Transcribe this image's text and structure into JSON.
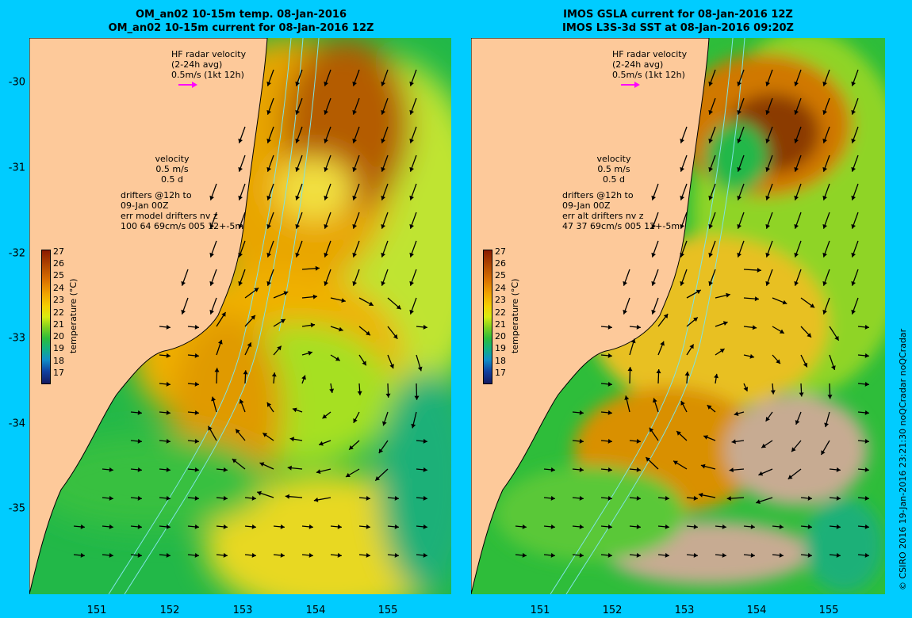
{
  "left_panel": {
    "title_line1": "OM_an02 10-15m temp. 08-Jan-2016",
    "title_line2": "OM_an02 10-15m current for 08-Jan-2016 12Z",
    "hf_radar": [
      "HF radar velocity",
      "(2-24h avg)",
      "0.5m/s (1kt 12h)"
    ],
    "velocity": [
      "velocity",
      "0.5 m/s",
      "0.5 d"
    ],
    "drifters": [
      "drifters @12h to",
      "09-Jan 00Z",
      "err model drifters nv z",
      "100 64 69cm/s 005 12+-5m"
    ]
  },
  "right_panel": {
    "title_line1": "IMOS GSLA current for 08-Jan-2016 12Z",
    "title_line2": "IMOS L3S-3d SST at 08-Jan-2016 09:20Z",
    "hf_radar": [
      "HF radar velocity",
      "(2-24h avg)",
      "0.5m/s (1kt 12h)"
    ],
    "velocity": [
      "velocity",
      "0.5 m/s",
      "0.5 d"
    ],
    "drifters": [
      "drifters @12h to",
      "09-Jan 00Z",
      "err alt drifters nv z",
      "47 37 69cm/s 005 12+-5m"
    ]
  },
  "colorbar": {
    "title": "temperature (°C)",
    "ticks": [
      "27",
      "26",
      "25",
      "24",
      "23",
      "22",
      "21",
      "20",
      "19",
      "18",
      "17"
    ]
  },
  "axes": {
    "lat_labels": [
      "-30",
      "-31",
      "-32",
      "-33",
      "-34",
      "-35"
    ],
    "lon_labels": [
      "151",
      "152",
      "153",
      "154",
      "155"
    ]
  },
  "copyright": "© CSIRO 2016   19-Jan-2016 23:21:30 noQCradar noQCradar",
  "colors": {
    "background": "#00ccff",
    "land": "#fdc99a",
    "warm_current": "#d98a00",
    "eddy_core": "#a6e020",
    "cool_water": "#22b848",
    "missing_data": "#c7ab92",
    "hf_radar_arrow": "#ff00ff",
    "isobath": "#7fe3e3"
  }
}
